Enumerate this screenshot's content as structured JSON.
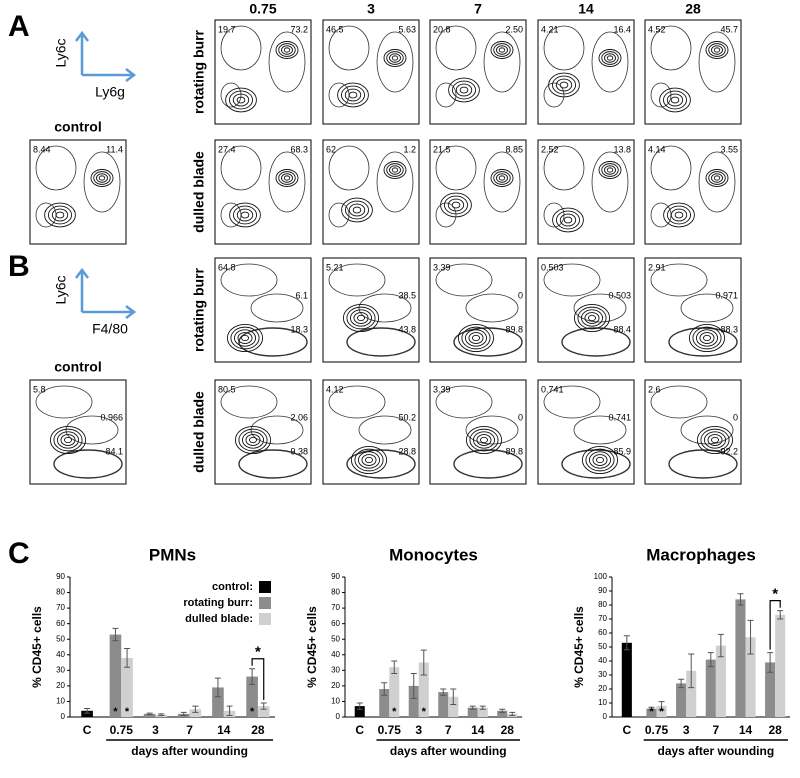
{
  "panel_labels": [
    "A",
    "B",
    "C"
  ],
  "flow": [
    {
      "axis_y": "Ly6c",
      "axis_x": "Ly6g",
      "control_label": "control",
      "control_gates": [
        "8.44",
        "11.4"
      ],
      "columns": [
        "0.75",
        "3",
        "7",
        "14",
        "28"
      ],
      "rows": [
        {
          "label": "rotating burr",
          "gates": [
            [
              "19.7",
              "73.2"
            ],
            [
              "46.5",
              "5.63"
            ],
            [
              "20.8",
              "2.50"
            ],
            [
              "4.21",
              "16.4"
            ],
            [
              "4.52",
              "45.7"
            ]
          ]
        },
        {
          "label": "dulled blade",
          "gates": [
            [
              "27.4",
              "68.3"
            ],
            [
              "62",
              "1.2"
            ],
            [
              "21.5",
              "8.85"
            ],
            [
              "2.52",
              "13.8"
            ],
            [
              "4.14",
              "3.55"
            ]
          ]
        }
      ]
    },
    {
      "axis_y": "Ly6c",
      "axis_x": "F4/80",
      "control_label": "control",
      "control_gates": [
        "5.8",
        "0.966",
        "84.1"
      ],
      "rows": [
        {
          "label": "rotating burr",
          "gates": [
            [
              "64.8",
              "6.1",
              "18.3"
            ],
            [
              "5.21",
              "38.5",
              "43.8"
            ],
            [
              "3.39",
              "0",
              "89.8"
            ],
            [
              "0.503",
              "0.503",
              "88.4"
            ],
            [
              "2.91",
              "0.971",
              "88.3"
            ]
          ]
        },
        {
          "label": "dulled blade",
          "gates": [
            [
              "80.5",
              "2.06",
              "9.38"
            ],
            [
              "4.12",
              "50.2",
              "28.8"
            ],
            [
              "3.39",
              "0",
              "89.8"
            ],
            [
              "0.741",
              "0.741",
              "85.9"
            ],
            [
              "2.6",
              "0",
              "92.2"
            ]
          ]
        }
      ]
    }
  ],
  "chart_data": [
    {
      "type": "bar",
      "title": "PMNs",
      "ylabel": "% CD45+ cells",
      "xlabel": "days after wounding",
      "categories": [
        "C",
        "0.75",
        "3",
        "7",
        "14",
        "28"
      ],
      "ylim": [
        0,
        90
      ],
      "yticks": [
        0,
        10,
        20,
        30,
        40,
        50,
        60,
        70,
        80,
        90
      ],
      "legend": "upper right",
      "series": [
        {
          "name": "control:",
          "color": "#000000",
          "values": [
            4,
            null,
            null,
            null,
            null,
            null
          ],
          "errors": [
            1.5,
            null,
            null,
            null,
            null,
            null
          ]
        },
        {
          "name": "rotating burr:",
          "color": "#8c8c8c",
          "values": [
            null,
            53,
            2,
            2,
            19,
            26
          ],
          "errors": [
            null,
            4,
            0.5,
            1,
            6,
            5
          ],
          "marks": [
            null,
            "*",
            null,
            null,
            null,
            "*"
          ]
        },
        {
          "name": "dulled blade:",
          "color": "#d0d0d0",
          "values": [
            null,
            38,
            1.5,
            5,
            4,
            7
          ],
          "errors": [
            null,
            6,
            0.5,
            2,
            3,
            2
          ],
          "marks": [
            null,
            "*",
            null,
            null,
            null,
            null
          ]
        }
      ],
      "significance": {
        "category": "28",
        "label": "*"
      }
    },
    {
      "type": "bar",
      "title": "Monocytes",
      "ylabel": "% CD45+ cells",
      "xlabel": "days after wounding",
      "categories": [
        "C",
        "0.75",
        "3",
        "7",
        "14",
        "28"
      ],
      "ylim": [
        0,
        90
      ],
      "yticks": [
        0,
        10,
        20,
        30,
        40,
        50,
        60,
        70,
        80,
        90
      ],
      "series": [
        {
          "name": "control:",
          "color": "#000000",
          "values": [
            7,
            null,
            null,
            null,
            null,
            null
          ],
          "errors": [
            2,
            null,
            null,
            null,
            null,
            null
          ]
        },
        {
          "name": "rotating burr:",
          "color": "#8c8c8c",
          "values": [
            null,
            18,
            20,
            16,
            6,
            4
          ],
          "errors": [
            null,
            4,
            8,
            2,
            1,
            1
          ]
        },
        {
          "name": "dulled blade:",
          "color": "#d0d0d0",
          "values": [
            null,
            32,
            35,
            13,
            6,
            2
          ],
          "errors": [
            null,
            4,
            8,
            5,
            1,
            1
          ],
          "marks": [
            null,
            "*",
            "*",
            null,
            null,
            null
          ]
        }
      ]
    },
    {
      "type": "bar",
      "title": "Macrophages",
      "ylabel": "% CD45+ cells",
      "xlabel": "days after wounding",
      "categories": [
        "C",
        "0.75",
        "3",
        "7",
        "14",
        "28"
      ],
      "ylim": [
        0,
        100
      ],
      "yticks": [
        0,
        10,
        20,
        30,
        40,
        50,
        60,
        70,
        80,
        90,
        100
      ],
      "series": [
        {
          "name": "control:",
          "color": "#000000",
          "values": [
            53,
            null,
            null,
            null,
            null,
            null
          ],
          "errors": [
            5,
            null,
            null,
            null,
            null,
            null
          ]
        },
        {
          "name": "rotating burr:",
          "color": "#8c8c8c",
          "values": [
            null,
            6,
            24,
            41,
            84,
            39
          ],
          "errors": [
            null,
            1,
            3,
            5,
            4,
            7
          ],
          "marks": [
            null,
            "*",
            null,
            null,
            null,
            null
          ]
        },
        {
          "name": "dulled blade:",
          "color": "#d0d0d0",
          "values": [
            null,
            8,
            33,
            51,
            57,
            73
          ],
          "errors": [
            null,
            3,
            12,
            8,
            12,
            3
          ],
          "marks": [
            null,
            "*",
            null,
            null,
            null,
            null
          ]
        }
      ],
      "significance": {
        "category": "28",
        "label": "*"
      }
    }
  ]
}
